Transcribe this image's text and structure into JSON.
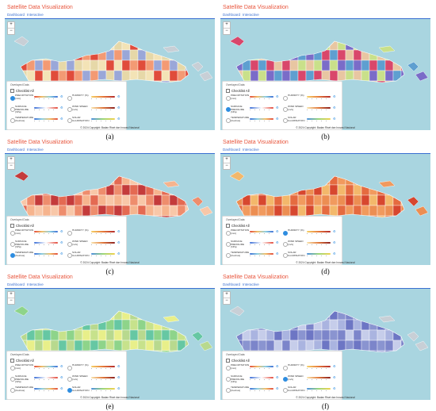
{
  "app_title": "Satellite Data Visualization",
  "tabs": [
    "Dashboard",
    "Interactive"
  ],
  "zoom": {
    "in": "+",
    "out": "−"
  },
  "overlay": {
    "header": "Overlayed Data",
    "check_all": "Checklist All",
    "layers": [
      {
        "label": "PRECIPITATION (mm)"
      },
      {
        "label": "HUMIDITY (%)"
      },
      {
        "label": "SURFACE PRESSURE (hPa)"
      },
      {
        "label": "WIND SPEED (m/s)"
      },
      {
        "label": "TEMPERATURE (Celcius)"
      },
      {
        "label": "SOLAR ILLUMINATION"
      }
    ]
  },
  "copyright": "© 2024 Copyright: Badan Riset dan Inovasi Nasional",
  "palettes": {
    "a": [
      "#f3e3b6",
      "#e6d8a8",
      "#9aa7d8",
      "#f39a74",
      "#e04c3b"
    ],
    "b": [
      "#c9e08a",
      "#e8c6a2",
      "#d9476b",
      "#5e9fd0",
      "#7a6cc8"
    ],
    "c": [
      "#f6b48e",
      "#e46a52",
      "#c43b3b",
      "#ee8d6d",
      "#f8c7a8"
    ],
    "d": [
      "#f19a5e",
      "#e56b40",
      "#f3b86b",
      "#d7472f",
      "#ec8e52"
    ],
    "e": [
      "#e8ef8a",
      "#c7e28c",
      "#8ed48a",
      "#66c7a3",
      "#b8d98e"
    ],
    "f": [
      "#8a94d0",
      "#6d76c4",
      "#aab4e0",
      "#c6cdea",
      "#7c85ca"
    ]
  },
  "panels": [
    {
      "caption": "(a)",
      "active_layer": 0
    },
    {
      "caption": "(b)",
      "active_layer": 2
    },
    {
      "caption": "(c)",
      "active_layer": 4
    },
    {
      "caption": "(d)",
      "active_layer": 1
    },
    {
      "caption": "(e)",
      "active_layer": 5
    },
    {
      "caption": "(f)",
      "active_layer": 3
    }
  ]
}
